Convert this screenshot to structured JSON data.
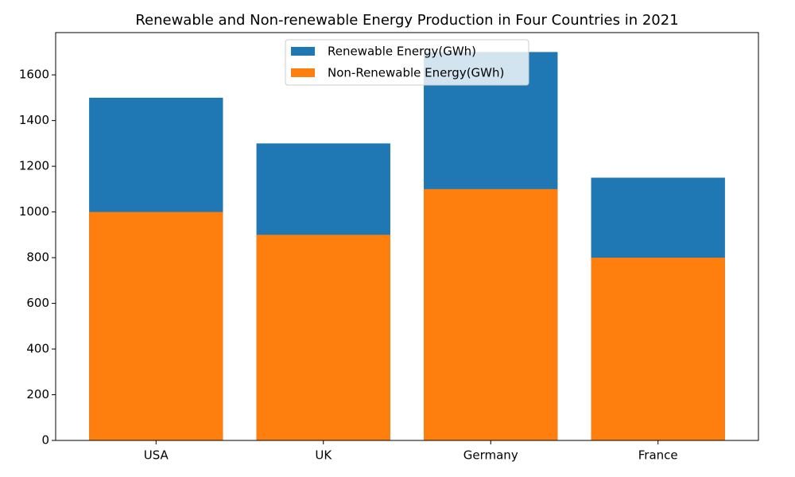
{
  "chart_data": {
    "type": "bar",
    "title": "Renewable and Non-renewable Energy Production in Four Countries in 2021",
    "categories": [
      "USA",
      "UK",
      "Germany",
      "France"
    ],
    "series": [
      {
        "name": "Renewable Energy(GWh)",
        "color": "#1f77b4",
        "values": [
          1500,
          1300,
          1700,
          1150
        ]
      },
      {
        "name": "Non-Renewable Energy(GWh)",
        "color": "#ff7f0e",
        "values": [
          1000,
          900,
          1100,
          800
        ]
      }
    ],
    "ylim": [
      0,
      1785
    ],
    "yticks": [
      0,
      200,
      400,
      600,
      800,
      1000,
      1200,
      1400,
      1600
    ],
    "legend": "upper center",
    "grid": false
  }
}
